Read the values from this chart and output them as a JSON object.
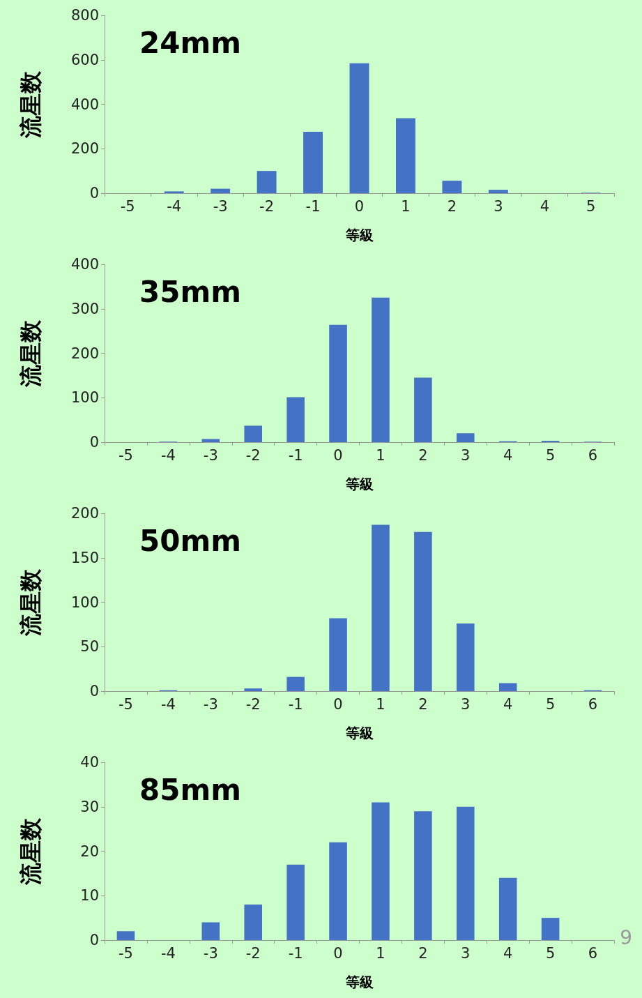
{
  "chart_data": [
    {
      "type": "bar",
      "title": "24mm",
      "xlabel": "等級",
      "ylabel": "流星数",
      "categories": [
        "-5",
        "-4",
        "-3",
        "-2",
        "-1",
        "0",
        "1",
        "2",
        "3",
        "4",
        "5"
      ],
      "values": [
        0,
        8,
        20,
        100,
        276,
        584,
        337,
        56,
        15,
        0,
        2
      ],
      "color": "#4472c4",
      "ylim": [
        0,
        800
      ],
      "yticks": [
        0,
        200,
        400,
        600,
        800
      ]
    },
    {
      "type": "bar",
      "title": "35mm",
      "xlabel": "等級",
      "ylabel": "流星数",
      "categories": [
        "-5",
        "-4",
        "-3",
        "-2",
        "-1",
        "0",
        "1",
        "2",
        "3",
        "4",
        "5",
        "6"
      ],
      "values": [
        0,
        1,
        7,
        37,
        101,
        264,
        325,
        145,
        20,
        2,
        3,
        1
      ],
      "color": "#4472c4",
      "ylim": [
        0,
        400
      ],
      "yticks": [
        0,
        100,
        200,
        300,
        400
      ]
    },
    {
      "type": "bar",
      "title": "50mm",
      "xlabel": "等級",
      "ylabel": "流星数",
      "categories": [
        "-5",
        "-4",
        "-3",
        "-2",
        "-1",
        "0",
        "1",
        "2",
        "3",
        "4",
        "5",
        "6"
      ],
      "values": [
        0,
        1,
        0,
        3,
        16,
        82,
        187,
        179,
        76,
        9,
        0,
        1
      ],
      "color": "#4472c4",
      "ylim": [
        0,
        200
      ],
      "yticks": [
        0,
        50,
        100,
        150,
        200
      ]
    },
    {
      "type": "bar",
      "title": "85mm",
      "xlabel": "等級",
      "ylabel": "流星数",
      "categories": [
        "-5",
        "-4",
        "-3",
        "-2",
        "-1",
        "0",
        "1",
        "2",
        "3",
        "4",
        "5",
        "6"
      ],
      "values": [
        2,
        0,
        4,
        8,
        17,
        22,
        31,
        29,
        30,
        14,
        5,
        0
      ],
      "color": "#4472c4",
      "ylim": [
        0,
        40
      ],
      "yticks": [
        0,
        10,
        20,
        30,
        40
      ],
      "annotations": [
        "9"
      ]
    }
  ]
}
